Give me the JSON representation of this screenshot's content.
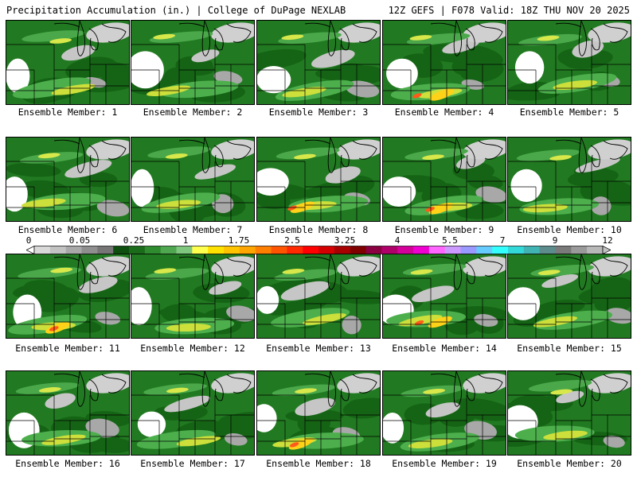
{
  "header": {
    "left": "Precipitation Accumulation (in.) | College of DuPage NEXLAB",
    "right": "12Z GEFS | F078 Valid: 18Z THU NOV 20 2025"
  },
  "panels": [
    {
      "caption": "Ensemble Member: 1"
    },
    {
      "caption": "Ensemble Member: 2"
    },
    {
      "caption": "Ensemble Member: 3"
    },
    {
      "caption": "Ensemble Member: 4"
    },
    {
      "caption": "Ensemble Member: 5"
    },
    {
      "caption": "Ensemble Member: 6"
    },
    {
      "caption": "Ensemble Member: 7"
    },
    {
      "caption": "Ensemble Member: 8"
    },
    {
      "caption": "Ensemble Member: 9"
    },
    {
      "caption": "Ensemble Member: 10"
    },
    {
      "caption": "Ensemble Member: 11"
    },
    {
      "caption": "Ensemble Member: 12"
    },
    {
      "caption": "Ensemble Member: 13"
    },
    {
      "caption": "Ensemble Member: 14"
    },
    {
      "caption": "Ensemble Member: 15"
    },
    {
      "caption": "Ensemble Member: 16"
    },
    {
      "caption": "Ensemble Member: 17"
    },
    {
      "caption": "Ensemble Member: 18"
    },
    {
      "caption": "Ensemble Member: 19"
    },
    {
      "caption": "Ensemble Member: 20"
    }
  ],
  "colorbar": {
    "labels": [
      "0",
      "0.05",
      "0.25",
      "1",
      "1.75",
      "2.5",
      "3.25",
      "4",
      "5.5",
      "7",
      "9",
      "12"
    ],
    "colors": [
      "#d9d9d9",
      "#c2c2c2",
      "#a8a8a8",
      "#8f8f8f",
      "#767676",
      "#0e4e0e",
      "#1a6b1a",
      "#2e8b2e",
      "#4fa84f",
      "#7fc67f",
      "#ffff4d",
      "#ffe100",
      "#ffc400",
      "#ffa500",
      "#ff7f00",
      "#ff5500",
      "#ff2a00",
      "#ff0000",
      "#d40000",
      "#a80000",
      "#800000",
      "#8b0040",
      "#b0006a",
      "#d4009a",
      "#f000d0",
      "#ff66ff",
      "#cc99ff",
      "#9999ff",
      "#66ccff",
      "#33ffff",
      "#33d9d9",
      "#40b3b3",
      "#5c8c8c",
      "#7a7a7a",
      "#9a9a9a",
      "#b8b8b8"
    ]
  }
}
